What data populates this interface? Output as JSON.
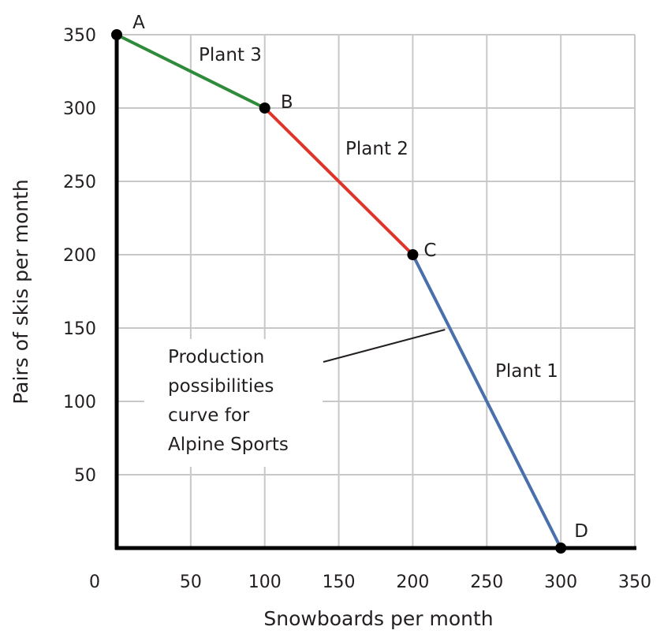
{
  "chart_data": {
    "type": "line",
    "xlabel": "Snowboards per month",
    "ylabel": "Pairs of skis per month",
    "xlim": [
      0,
      350
    ],
    "ylim": [
      0,
      350
    ],
    "x_ticks": [
      0,
      50,
      100,
      150,
      200,
      250,
      300,
      350
    ],
    "y_ticks": [
      50,
      100,
      150,
      200,
      250,
      300,
      350
    ],
    "x_tick_labels": [
      "0",
      "50",
      "100",
      "150",
      "200",
      "250",
      "300",
      "350"
    ],
    "y_tick_labels": [
      "50",
      "100",
      "150",
      "200",
      "250",
      "300",
      "350"
    ],
    "grid": true,
    "points": [
      {
        "label": "A",
        "x": 0,
        "y": 350
      },
      {
        "label": "B",
        "x": 100,
        "y": 300
      },
      {
        "label": "C",
        "x": 200,
        "y": 200
      },
      {
        "label": "D",
        "x": 300,
        "y": 0
      }
    ],
    "segments": [
      {
        "name": "Plant 3",
        "from": "A",
        "to": "B",
        "color": "#2e8b3a"
      },
      {
        "name": "Plant 2",
        "from": "B",
        "to": "C",
        "color": "#e0342a"
      },
      {
        "name": "Plant 1",
        "from": "C",
        "to": "D",
        "color": "#4a6fad"
      }
    ],
    "annotation": {
      "lines": [
        "Production",
        "possibilities",
        "curve for",
        "Alpine Sports"
      ],
      "points_to": {
        "x": 225,
        "y": 150
      }
    }
  }
}
